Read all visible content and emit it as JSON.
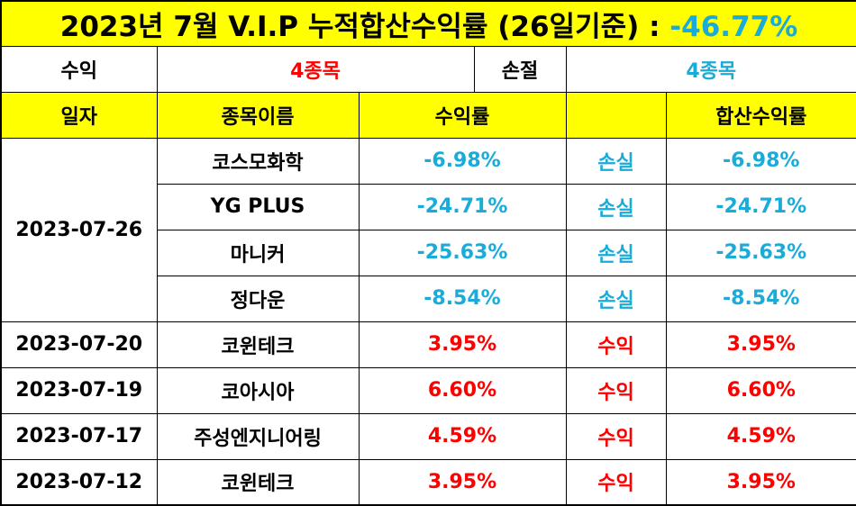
{
  "title": {
    "text": "2023년 7월 V.I.P 누적합산수익률 (26일기준) : ",
    "value": "-46.77%"
  },
  "summary": {
    "profit_label": "수익",
    "profit_count": "4종목",
    "loss_label": "손절",
    "loss_count": "4종목"
  },
  "headers": {
    "date": "일자",
    "name": "종목이름",
    "return": "수익률",
    "blank": "",
    "cumulative": "합산수익률"
  },
  "colors": {
    "header_bg": "#ffff00",
    "profit": "#ff0000",
    "loss": "#1aabd8"
  },
  "group": {
    "date": "2023-07-26"
  },
  "rows": [
    {
      "date": "2023-07-26",
      "name": "코스모화학",
      "return": "-6.98%",
      "status": "손실",
      "cumulative": "-6.98%"
    },
    {
      "date": "2023-07-26",
      "name": "YG PLUS",
      "return": "-24.71%",
      "status": "손실",
      "cumulative": "-24.71%"
    },
    {
      "date": "2023-07-26",
      "name": "마니커",
      "return": "-25.63%",
      "status": "손실",
      "cumulative": "-25.63%"
    },
    {
      "date": "2023-07-26",
      "name": "정다운",
      "return": "-8.54%",
      "status": "손실",
      "cumulative": "-8.54%"
    },
    {
      "date": "2023-07-20",
      "name": "코윈테크",
      "return": "3.95%",
      "status": "수익",
      "cumulative": "3.95%"
    },
    {
      "date": "2023-07-19",
      "name": "코아시아",
      "return": "6.60%",
      "status": "수익",
      "cumulative": "6.60%"
    },
    {
      "date": "2023-07-17",
      "name": "주성엔지니어링",
      "return": "4.59%",
      "status": "수익",
      "cumulative": "4.59%"
    },
    {
      "date": "2023-07-12",
      "name": "코윈테크",
      "return": "3.95%",
      "status": "수익",
      "cumulative": "3.95%"
    }
  ]
}
